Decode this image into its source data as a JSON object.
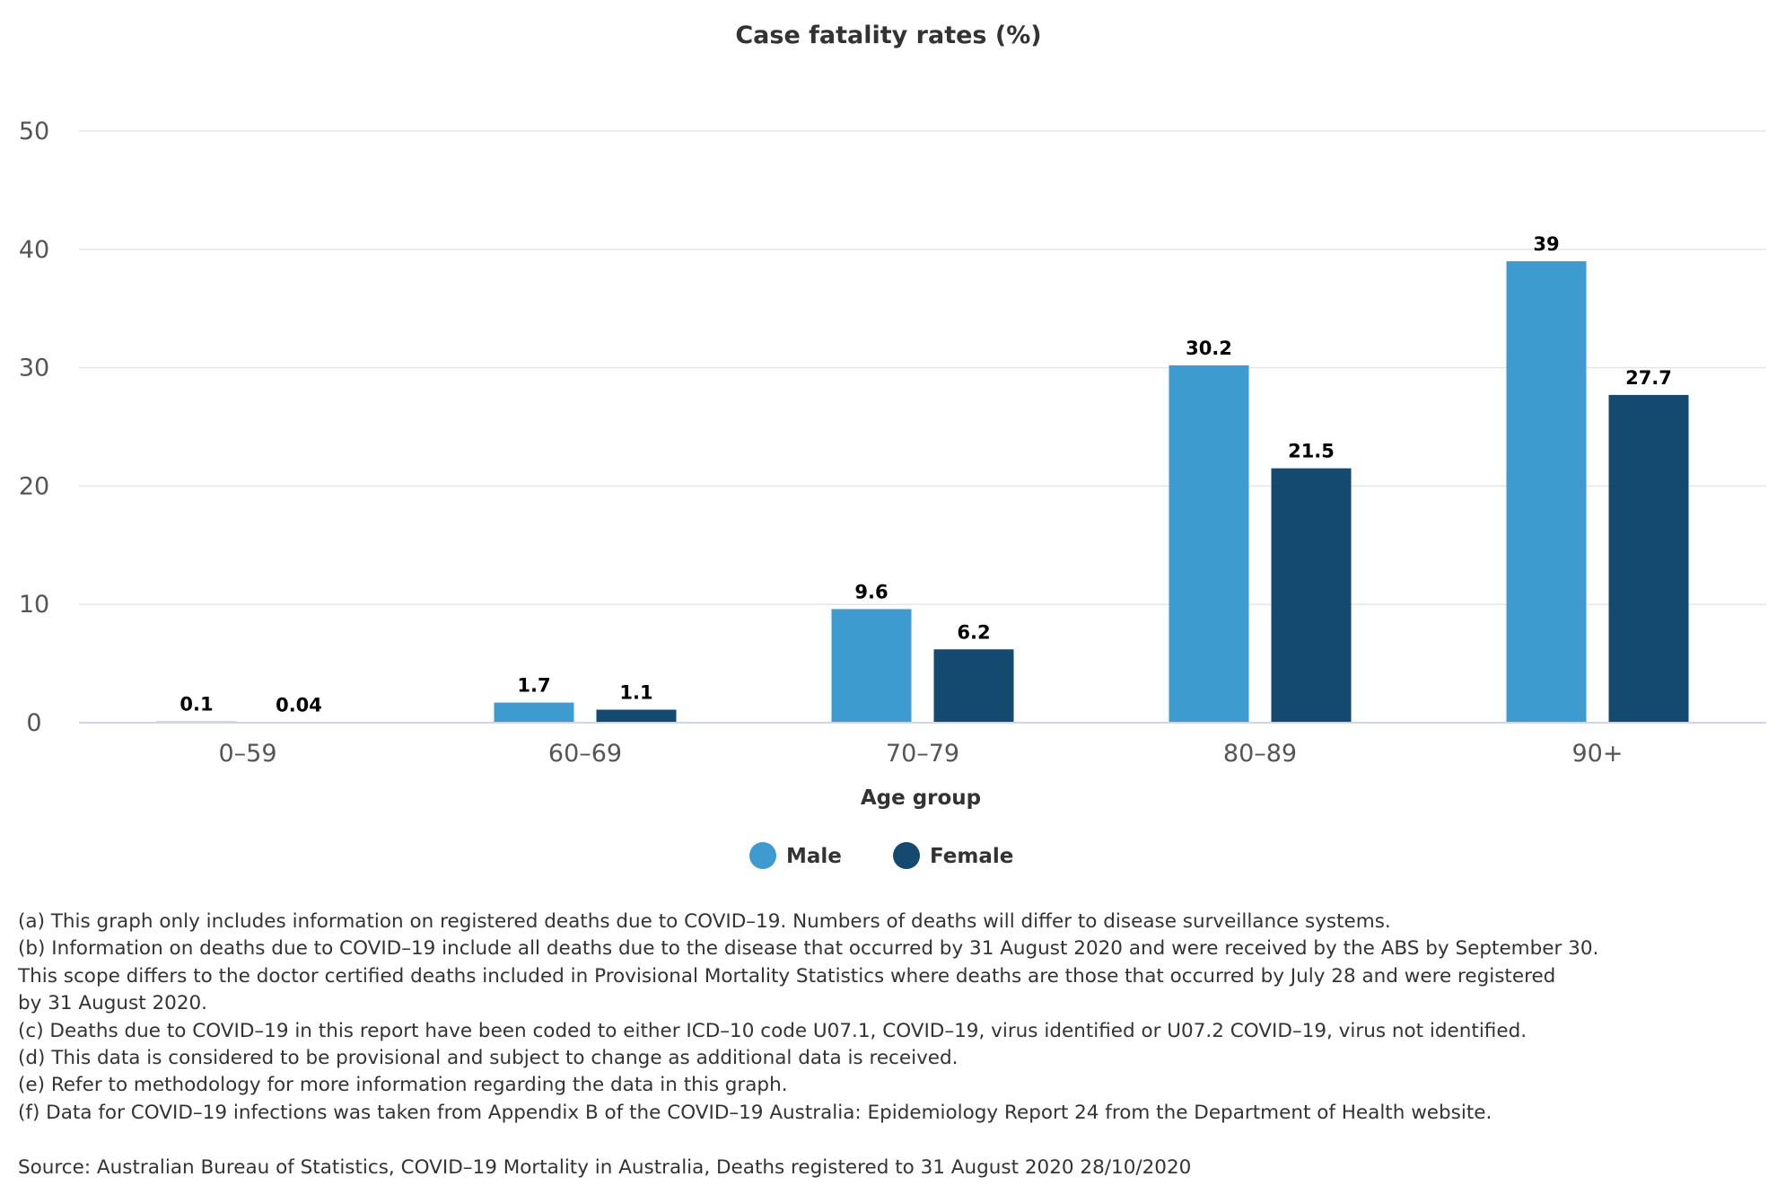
{
  "chart_data": {
    "type": "bar",
    "title": "Case fatality rates (%)",
    "xlabel": "Age group",
    "ylabel": "",
    "ylim": [
      0,
      50
    ],
    "yticks": [
      0,
      10,
      20,
      30,
      40,
      50
    ],
    "grid": true,
    "legend_position": "bottom-center",
    "categories": [
      "0–59",
      "60–69",
      "70–79",
      "80–89",
      "90+"
    ],
    "series": [
      {
        "name": "Male",
        "color": "#3e9bd0",
        "values": [
          0.1,
          1.7,
          9.6,
          30.2,
          39
        ],
        "labels": [
          "0.1",
          "1.7",
          "9.6",
          "30.2",
          "39"
        ]
      },
      {
        "name": "Female",
        "color": "#154a70",
        "values": [
          0.04,
          1.1,
          6.2,
          21.5,
          27.7
        ],
        "labels": [
          "0.04",
          "1.1",
          "6.2",
          "21.5",
          "27.7"
        ]
      }
    ]
  },
  "notes": [
    "(a) This graph only includes information on registered deaths due to COVID–19. Numbers of deaths will differ to disease surveillance systems.",
    "(b) Information on deaths due to COVID–19 include all deaths due to the disease that occurred by 31 August 2020 and were received by the ABS by September 30.",
    "This scope differs to the doctor certified deaths included in Provisional Mortality Statistics where deaths are those that occurred by July 28 and were registered",
    "by 31 August 2020.",
    "(c) Deaths due to COVID–19 in this report have been coded to either ICD–10 code U07.1, COVID–19, virus identified or U07.2 COVID–19, virus not identified.",
    "(d) This data is considered to be provisional and subject to change as additional data is received.",
    "(e) Refer to methodology for more information regarding the data in this graph.",
    "(f) Data for COVID–19 infections was taken from Appendix B of the COVID–19 Australia: Epidemiology Report 24 from the Department of Health website."
  ],
  "source": "Source: Australian Bureau of Statistics, COVID–19 Mortality in Australia, Deaths registered to 31 August 2020 28/10/2020"
}
